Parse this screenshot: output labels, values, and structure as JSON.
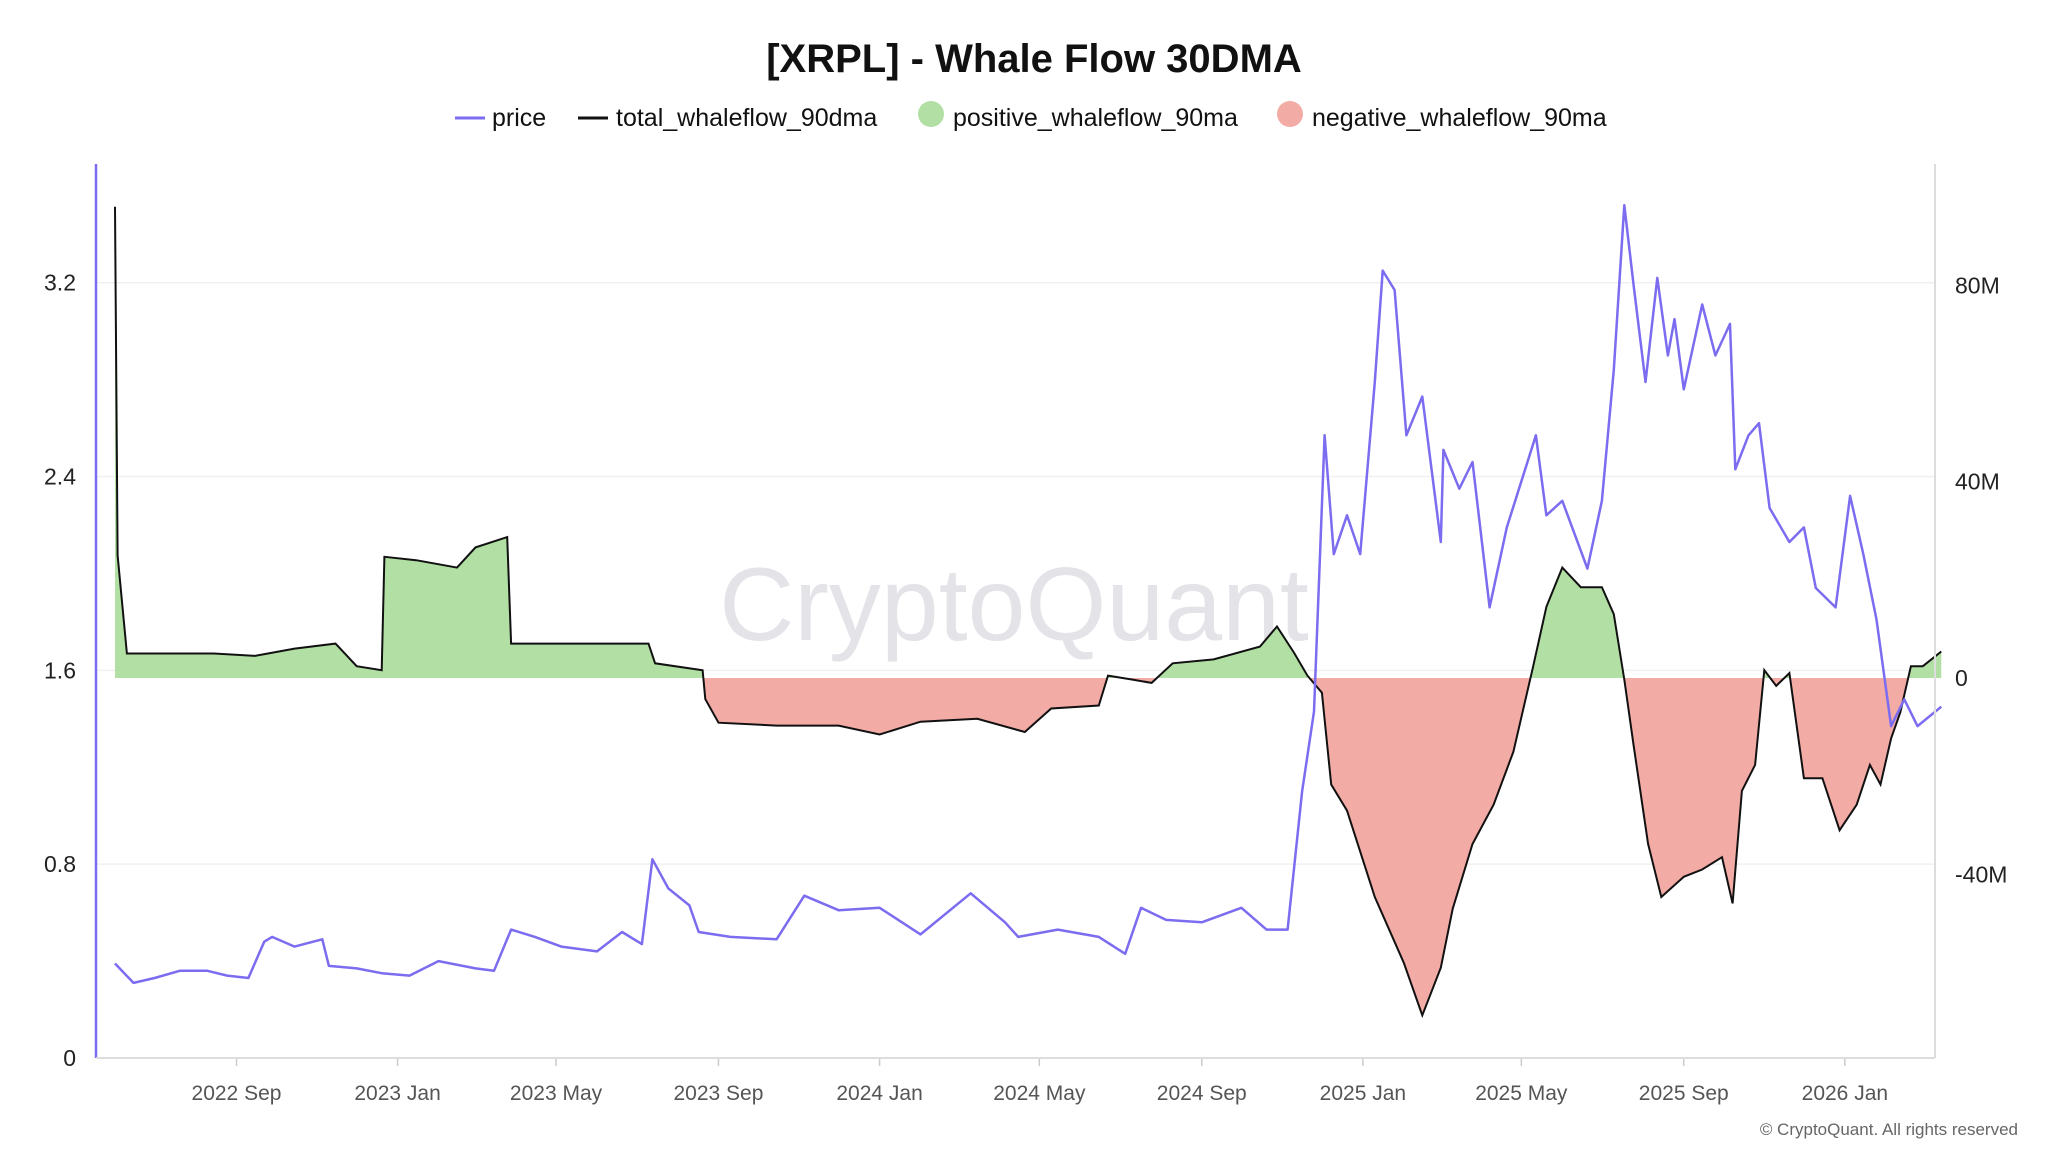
{
  "chart_data": {
    "type": "line",
    "title": "[XRPL] - Whale Flow 30DMA",
    "watermark": "CryptoQuant",
    "copyright": "© CryptoQuant. All rights reserved",
    "legend_position": "top-center",
    "grid": true,
    "x_ticks": [
      "2022 Sep",
      "2023 Jan",
      "2023 May",
      "2023 Sep",
      "2024 Jan",
      "2024 May",
      "2024 Sep",
      "2025 Jan",
      "2025 May",
      "2025 Sep",
      "2026 Jan"
    ],
    "x_tick_dates": [
      "2022-09-01",
      "2023-01-01",
      "2023-05-01",
      "2023-09-01",
      "2024-01-01",
      "2024-05-01",
      "2024-09-01",
      "2025-01-01",
      "2025-05-01",
      "2025-09-01",
      "2026-01-01"
    ],
    "left_axis": {
      "ticks": [
        "0",
        "0.8",
        "1.6",
        "2.4",
        "3.2"
      ],
      "tick_values": [
        0,
        0.8,
        1.6,
        2.4,
        3.2
      ],
      "range": [
        0,
        3.69
      ]
    },
    "right_axis": {
      "ticks": [
        "-40M",
        "0",
        "40M",
        "80M"
      ],
      "tick_values": [
        -40,
        0,
        40,
        80
      ],
      "unit": "M",
      "range": [
        -77.4,
        104.7
      ]
    },
    "legend": [
      {
        "name": "price",
        "kind": "line",
        "color": "#7b6cf0"
      },
      {
        "name": "total_whaleflow_90dma",
        "kind": "line",
        "color": "#111111"
      },
      {
        "name": "positive_whaleflow_90ma",
        "kind": "dot",
        "color": "#b2e0a4"
      },
      {
        "name": "negative_whaleflow_90ma",
        "kind": "dot",
        "color": "#f3aba6"
      }
    ],
    "series": [
      {
        "name": "price",
        "axis": "left",
        "points": [
          [
            "2022-06-01",
            0.39
          ],
          [
            "2022-06-15",
            0.31
          ],
          [
            "2022-07-01",
            0.33
          ],
          [
            "2022-07-20",
            0.36
          ],
          [
            "2022-08-10",
            0.36
          ],
          [
            "2022-08-25",
            0.34
          ],
          [
            "2022-09-10",
            0.33
          ],
          [
            "2022-09-22",
            0.48
          ],
          [
            "2022-09-28",
            0.5
          ],
          [
            "2022-10-15",
            0.46
          ],
          [
            "2022-11-05",
            0.49
          ],
          [
            "2022-11-10",
            0.38
          ],
          [
            "2022-12-01",
            0.37
          ],
          [
            "2022-12-20",
            0.35
          ],
          [
            "2023-01-10",
            0.34
          ],
          [
            "2023-02-01",
            0.4
          ],
          [
            "2023-03-01",
            0.37
          ],
          [
            "2023-03-15",
            0.36
          ],
          [
            "2023-03-28",
            0.53
          ],
          [
            "2023-04-15",
            0.5
          ],
          [
            "2023-05-05",
            0.46
          ],
          [
            "2023-06-01",
            0.44
          ],
          [
            "2023-06-20",
            0.52
          ],
          [
            "2023-07-05",
            0.47
          ],
          [
            "2023-07-13",
            0.82
          ],
          [
            "2023-07-25",
            0.7
          ],
          [
            "2023-08-10",
            0.63
          ],
          [
            "2023-08-17",
            0.52
          ],
          [
            "2023-09-10",
            0.5
          ],
          [
            "2023-10-15",
            0.49
          ],
          [
            "2023-11-05",
            0.67
          ],
          [
            "2023-12-01",
            0.61
          ],
          [
            "2024-01-01",
            0.62
          ],
          [
            "2024-02-01",
            0.51
          ],
          [
            "2024-03-10",
            0.68
          ],
          [
            "2024-04-05",
            0.56
          ],
          [
            "2024-04-15",
            0.5
          ],
          [
            "2024-05-15",
            0.53
          ],
          [
            "2024-06-15",
            0.5
          ],
          [
            "2024-07-05",
            0.43
          ],
          [
            "2024-07-17",
            0.62
          ],
          [
            "2024-08-05",
            0.57
          ],
          [
            "2024-09-01",
            0.56
          ],
          [
            "2024-10-01",
            0.62
          ],
          [
            "2024-10-20",
            0.53
          ],
          [
            "2024-11-05",
            0.53
          ],
          [
            "2024-11-16",
            1.1
          ],
          [
            "2024-11-25",
            1.43
          ],
          [
            "2024-12-03",
            2.57
          ],
          [
            "2024-12-10",
            2.08
          ],
          [
            "2024-12-20",
            2.24
          ],
          [
            "2024-12-30",
            2.08
          ],
          [
            "2025-01-10",
            2.79
          ],
          [
            "2025-01-16",
            3.25
          ],
          [
            "2025-01-25",
            3.17
          ],
          [
            "2025-02-03",
            2.57
          ],
          [
            "2025-02-15",
            2.73
          ],
          [
            "2025-03-01",
            2.13
          ],
          [
            "2025-03-03",
            2.51
          ],
          [
            "2025-03-15",
            2.35
          ],
          [
            "2025-03-25",
            2.46
          ],
          [
            "2025-04-07",
            1.86
          ],
          [
            "2025-04-20",
            2.19
          ],
          [
            "2025-05-12",
            2.57
          ],
          [
            "2025-05-20",
            2.24
          ],
          [
            "2025-06-01",
            2.3
          ],
          [
            "2025-06-20",
            2.02
          ],
          [
            "2025-07-01",
            2.3
          ],
          [
            "2025-07-10",
            2.84
          ],
          [
            "2025-07-18",
            3.52
          ],
          [
            "2025-07-25",
            3.19
          ],
          [
            "2025-08-03",
            2.79
          ],
          [
            "2025-08-12",
            3.22
          ],
          [
            "2025-08-20",
            2.9
          ],
          [
            "2025-08-25",
            3.05
          ],
          [
            "2025-09-01",
            2.76
          ],
          [
            "2025-09-15",
            3.11
          ],
          [
            "2025-09-25",
            2.9
          ],
          [
            "2025-10-06",
            3.03
          ],
          [
            "2025-10-10",
            2.43
          ],
          [
            "2025-10-20",
            2.57
          ],
          [
            "2025-10-28",
            2.62
          ],
          [
            "2025-11-05",
            2.27
          ],
          [
            "2025-11-20",
            2.13
          ],
          [
            "2025-12-01",
            2.19
          ],
          [
            "2025-12-10",
            1.94
          ],
          [
            "2025-12-25",
            1.86
          ],
          [
            "2026-01-05",
            2.32
          ],
          [
            "2026-01-15",
            2.08
          ],
          [
            "2026-01-25",
            1.81
          ],
          [
            "2026-02-05",
            1.37
          ],
          [
            "2026-02-15",
            1.48
          ],
          [
            "2026-02-25",
            1.37
          ],
          [
            "2026-03-15",
            1.45
          ]
        ]
      },
      {
        "name": "total_whaleflow_90dma",
        "axis": "right",
        "unit": "M",
        "points": [
          [
            "2022-06-01",
            96
          ],
          [
            "2022-06-03",
            25
          ],
          [
            "2022-06-10",
            5
          ],
          [
            "2022-07-15",
            5
          ],
          [
            "2022-08-15",
            5
          ],
          [
            "2022-09-15",
            4.5
          ],
          [
            "2022-10-15",
            6
          ],
          [
            "2022-11-15",
            7
          ],
          [
            "2022-12-01",
            2.4
          ],
          [
            "2022-12-20",
            1.6
          ],
          [
            "2022-12-22",
            24.7
          ],
          [
            "2023-01-15",
            24
          ],
          [
            "2023-02-15",
            22.5
          ],
          [
            "2023-03-01",
            26.6
          ],
          [
            "2023-03-25",
            28.7
          ],
          [
            "2023-03-28",
            7
          ],
          [
            "2023-05-01",
            7
          ],
          [
            "2023-06-15",
            7
          ],
          [
            "2023-07-10",
            7
          ],
          [
            "2023-07-15",
            3
          ],
          [
            "2023-08-20",
            1.6
          ],
          [
            "2023-08-22",
            -4.3
          ],
          [
            "2023-09-01",
            -9.1
          ],
          [
            "2023-10-15",
            -9.7
          ],
          [
            "2023-12-01",
            -9.7
          ],
          [
            "2024-01-01",
            -11.5
          ],
          [
            "2024-02-01",
            -8.9
          ],
          [
            "2024-03-15",
            -8.3
          ],
          [
            "2024-04-20",
            -11
          ],
          [
            "2024-05-10",
            -6.2
          ],
          [
            "2024-06-15",
            -5.6
          ],
          [
            "2024-06-22",
            0.5
          ],
          [
            "2024-07-10",
            -0.3
          ],
          [
            "2024-07-25",
            -1
          ],
          [
            "2024-08-10",
            3
          ],
          [
            "2024-09-10",
            3.8
          ],
          [
            "2024-10-15",
            6.4
          ],
          [
            "2024-10-28",
            10.5
          ],
          [
            "2024-11-10",
            5.1
          ],
          [
            "2024-11-20",
            0.5
          ],
          [
            "2024-12-01",
            -3
          ],
          [
            "2024-12-08",
            -21.7
          ],
          [
            "2024-12-20",
            -27
          ],
          [
            "2025-01-10",
            -44.6
          ],
          [
            "2025-02-01",
            -58
          ],
          [
            "2025-02-15",
            -68.7
          ],
          [
            "2025-03-01",
            -59
          ],
          [
            "2025-03-10",
            -47
          ],
          [
            "2025-03-25",
            -33.8
          ],
          [
            "2025-04-10",
            -25.8
          ],
          [
            "2025-04-25",
            -15
          ],
          [
            "2025-05-10",
            2.4
          ],
          [
            "2025-05-20",
            14.5
          ],
          [
            "2025-06-01",
            22.5
          ],
          [
            "2025-06-15",
            18.5
          ],
          [
            "2025-07-01",
            18.5
          ],
          [
            "2025-07-10",
            13
          ],
          [
            "2025-07-18",
            -0.3
          ],
          [
            "2025-07-25",
            -13.7
          ],
          [
            "2025-08-05",
            -33.8
          ],
          [
            "2025-08-15",
            -44.6
          ],
          [
            "2025-09-01",
            -40.5
          ],
          [
            "2025-09-15",
            -39
          ],
          [
            "2025-09-30",
            -36.5
          ],
          [
            "2025-10-08",
            -45.9
          ],
          [
            "2025-10-15",
            -23
          ],
          [
            "2025-10-25",
            -17.7
          ],
          [
            "2025-11-01",
            1.6
          ],
          [
            "2025-11-10",
            -1.6
          ],
          [
            "2025-11-20",
            1
          ],
          [
            "2025-12-01",
            -20.4
          ],
          [
            "2025-12-15",
            -20.4
          ],
          [
            "2025-12-28",
            -31
          ],
          [
            "2026-01-10",
            -25.8
          ],
          [
            "2026-01-20",
            -17.7
          ],
          [
            "2026-01-28",
            -21.7
          ],
          [
            "2026-02-05",
            -12.3
          ],
          [
            "2026-02-12",
            -7
          ],
          [
            "2026-02-20",
            2.4
          ],
          [
            "2026-03-01",
            2.4
          ],
          [
            "2026-03-15",
            5.4
          ]
        ]
      }
    ]
  }
}
